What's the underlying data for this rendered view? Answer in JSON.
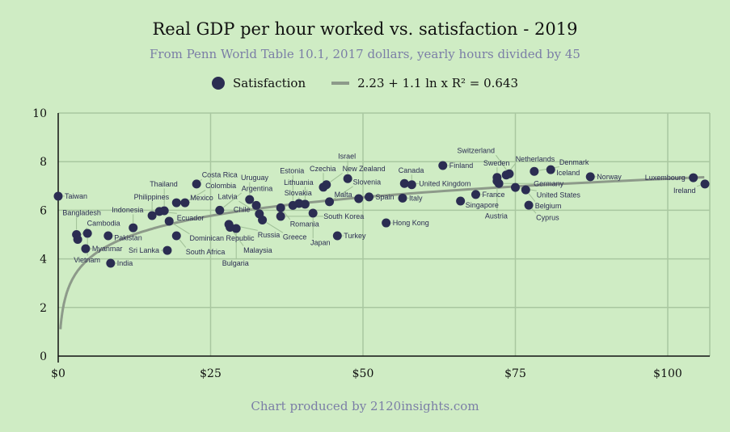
{
  "chart_data": {
    "type": "scatter",
    "title": "Real GDP per hour worked vs. satisfaction - 2019",
    "subtitle": "From Penn World Table 10.1, 2017 dollars, yearly hours divided by 45",
    "footer": "Chart produced by 2120insights.com",
    "legend": {
      "placement": "top",
      "series_label": "Satisfaction",
      "trend_label": "2.23 + 1.1 ln x R² = 0.643"
    },
    "xlim": [
      0,
      107
    ],
    "ylim": [
      0,
      10
    ],
    "xticks": [
      {
        "v": 0,
        "label": "$0"
      },
      {
        "v": 25,
        "label": "$25"
      },
      {
        "v": 50,
        "label": "$50"
      },
      {
        "v": 75,
        "label": "$75"
      },
      {
        "v": 100,
        "label": "$100"
      }
    ],
    "yticks": [
      {
        "v": 0,
        "label": "0"
      },
      {
        "v": 2,
        "label": "2"
      },
      {
        "v": 4,
        "label": "4"
      },
      {
        "v": 6,
        "label": "6"
      },
      {
        "v": 8,
        "label": "8"
      },
      {
        "v": 10,
        "label": "10"
      }
    ],
    "trend": {
      "a": 2.23,
      "b": 1.1,
      "xmin": 0.36,
      "xmax": 106
    },
    "colors": {
      "point": "#2b2d52",
      "trend": "#8d9a8a",
      "grid": "#a9c7a0"
    },
    "points": [
      {
        "name": "Taiwan",
        "x": 0,
        "y": 6.58
      },
      {
        "name": "India",
        "x": 8.6,
        "y": 3.82
      },
      {
        "name": "Myanmar",
        "x": 4.5,
        "y": 4.42
      },
      {
        "name": "Pakistan",
        "x": 8.2,
        "y": 4.95
      },
      {
        "name": "Cambodia",
        "x": 3.2,
        "y": 4.8
      },
      {
        "name": "Bangladesh",
        "x": 3.0,
        "y": 5.0
      },
      {
        "name": "Vietnam",
        "x": 4.8,
        "y": 5.05
      },
      {
        "name": "Indonesia",
        "x": 12.3,
        "y": 5.28
      },
      {
        "name": "Philippines",
        "x": 15.4,
        "y": 5.78
      },
      {
        "name": "Dominican Republic",
        "x": 18.2,
        "y": 5.55
      },
      {
        "name": "Ecuador",
        "x": 16.6,
        "y": 5.95
      },
      {
        "name": "Thailand",
        "x": 17.4,
        "y": 5.98
      },
      {
        "name": "Mexico",
        "x": 19.4,
        "y": 6.31
      },
      {
        "name": "Colombia",
        "x": 20.8,
        "y": 6.31
      },
      {
        "name": "South Africa",
        "x": 19.4,
        "y": 4.95
      },
      {
        "name": "Sri Lanka",
        "x": 17.9,
        "y": 4.35
      },
      {
        "name": "Costa Rica",
        "x": 22.7,
        "y": 7.08
      },
      {
        "name": "Argentina",
        "x": 26.5,
        "y": 6.0
      },
      {
        "name": "Russia",
        "x": 28.0,
        "y": 5.42
      },
      {
        "name": "Malaysia",
        "x": 28.2,
        "y": 5.3
      },
      {
        "name": "Bulgaria",
        "x": 29.2,
        "y": 5.25
      },
      {
        "name": "Uruguay",
        "x": 31.4,
        "y": 6.44
      },
      {
        "name": "Chile",
        "x": 32.5,
        "y": 6.2
      },
      {
        "name": "Romania",
        "x": 36.5,
        "y": 6.1
      },
      {
        "name": "Greece",
        "x": 33.5,
        "y": 5.6
      },
      {
        "name": "Latvia",
        "x": 33.0,
        "y": 5.85
      },
      {
        "name": "South Korea",
        "x": 36.5,
        "y": 5.75
      },
      {
        "name": "Slovakia",
        "x": 39.5,
        "y": 6.28
      },
      {
        "name": "Lithuania",
        "x": 40.5,
        "y": 6.25
      },
      {
        "name": "Estonia",
        "x": 38.5,
        "y": 6.2
      },
      {
        "name": "Japan",
        "x": 41.8,
        "y": 5.88
      },
      {
        "name": "Slovenia",
        "x": 44.5,
        "y": 6.35
      },
      {
        "name": "Czechia",
        "x": 43.5,
        "y": 6.95
      },
      {
        "name": "New Zealand",
        "x": 44.0,
        "y": 7.05
      },
      {
        "name": "Turkey",
        "x": 45.8,
        "y": 4.95
      },
      {
        "name": "Hong Kong",
        "x": 53.8,
        "y": 5.48
      },
      {
        "name": "Malta",
        "x": 49.3,
        "y": 6.48
      },
      {
        "name": "Spain",
        "x": 51.0,
        "y": 6.55
      },
      {
        "name": "Italy",
        "x": 56.5,
        "y": 6.5
      },
      {
        "name": "Israel",
        "x": 47.5,
        "y": 7.3
      },
      {
        "name": "United Kingdom",
        "x": 56.8,
        "y": 7.1
      },
      {
        "name": "Canada",
        "x": 58.0,
        "y": 7.05
      },
      {
        "name": "Finland",
        "x": 63.1,
        "y": 7.84
      },
      {
        "name": "Singapore",
        "x": 66.0,
        "y": 6.38
      },
      {
        "name": "France",
        "x": 68.5,
        "y": 6.65
      },
      {
        "name": "Sweden",
        "x": 72.0,
        "y": 7.35
      },
      {
        "name": "Netherlands",
        "x": 73.5,
        "y": 7.45
      },
      {
        "name": "Germany",
        "x": 72.3,
        "y": 7.1
      },
      {
        "name": "Switzerland",
        "x": 74.0,
        "y": 7.5
      },
      {
        "name": "United States",
        "x": 75.0,
        "y": 6.94
      },
      {
        "name": "Austria",
        "x": 72.0,
        "y": 7.2
      },
      {
        "name": "Belgium",
        "x": 76.7,
        "y": 6.84
      },
      {
        "name": "Cyprus",
        "x": 77.2,
        "y": 6.21
      },
      {
        "name": "Denmark",
        "x": 78.1,
        "y": 7.6
      },
      {
        "name": "Iceland",
        "x": 80.8,
        "y": 7.67
      },
      {
        "name": "Norway",
        "x": 87.3,
        "y": 7.38
      },
      {
        "name": "Luxembourg",
        "x": 104.2,
        "y": 7.34
      },
      {
        "name": "Ireland",
        "x": 106.1,
        "y": 7.08
      }
    ]
  }
}
